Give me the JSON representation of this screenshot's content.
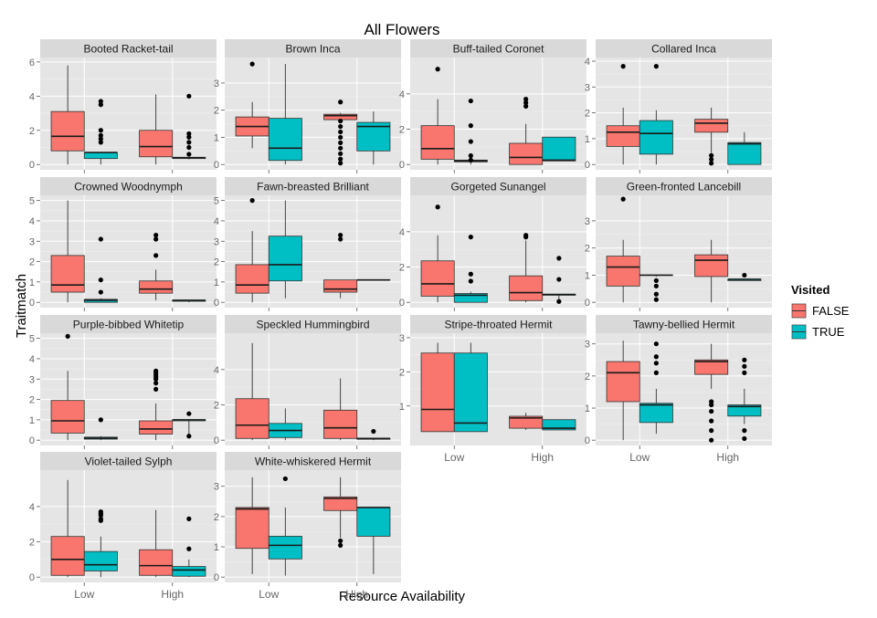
{
  "chart_data": {
    "type": "boxplot",
    "title": "All Flowers",
    "xlabel": "Resource Availability",
    "ylabel": "Traitmatch",
    "grid": true,
    "legend": {
      "title": "Visited",
      "position": "right",
      "entries": [
        {
          "label": "FALSE",
          "color": "#F8766D"
        },
        {
          "label": "TRUE",
          "color": "#00BFC4"
        }
      ]
    },
    "categories": [
      "Low",
      "High"
    ],
    "panels": [
      {
        "title": "Booted Racket-tail",
        "ylim": [
          0,
          6.2
        ],
        "yticks": [
          0,
          2,
          4,
          6
        ],
        "groups": [
          {
            "category": "Low",
            "visited": "FALSE",
            "min": 0,
            "q1": 0.8,
            "median": 1.65,
            "q3": 3.1,
            "max": 5.8,
            "outliers": []
          },
          {
            "category": "Low",
            "visited": "TRUE",
            "min": 0,
            "q1": 0.35,
            "median": 0.7,
            "q3": 0.7,
            "max": 0.7,
            "outliers": [
              3.7,
              3.5,
              2.0,
              1.7,
              1.5,
              1.3
            ]
          },
          {
            "category": "High",
            "visited": "FALSE",
            "min": 0,
            "q1": 0.45,
            "median": 1.05,
            "q3": 2.0,
            "max": 4.1,
            "outliers": []
          },
          {
            "category": "High",
            "visited": "TRUE",
            "min": 0.3,
            "q1": 0.35,
            "median": 0.4,
            "q3": 0.4,
            "max": 0.4,
            "outliers": [
              4.0,
              1.8,
              1.6,
              1.3,
              1.0,
              0.6
            ]
          }
        ]
      },
      {
        "title": "Brown Inca",
        "ylim": [
          0,
          3.9
        ],
        "yticks": [
          0,
          1,
          2,
          3
        ],
        "groups": [
          {
            "category": "Low",
            "visited": "FALSE",
            "min": 0.6,
            "q1": 1.05,
            "median": 1.4,
            "q3": 1.75,
            "max": 2.3,
            "outliers": [
              3.7
            ]
          },
          {
            "category": "Low",
            "visited": "TRUE",
            "min": 0,
            "q1": 0.15,
            "median": 0.6,
            "q3": 1.7,
            "max": 3.7,
            "outliers": []
          },
          {
            "category": "High",
            "visited": "FALSE",
            "min": 1.6,
            "q1": 1.65,
            "median": 1.8,
            "q3": 1.85,
            "max": 1.9,
            "outliers": [
              2.3,
              1.6,
              1.4,
              1.2,
              1.0,
              0.8,
              0.6,
              0.4,
              0.2,
              0.05
            ]
          },
          {
            "category": "High",
            "visited": "TRUE",
            "min": 0,
            "q1": 0.5,
            "median": 1.4,
            "q3": 1.55,
            "max": 1.95,
            "outliers": []
          }
        ]
      },
      {
        "title": "Buff-tailed Coronet",
        "ylim": [
          0,
          6.0
        ],
        "yticks": [
          0,
          2,
          4
        ],
        "groups": [
          {
            "category": "Low",
            "visited": "FALSE",
            "min": 0,
            "q1": 0.3,
            "median": 0.9,
            "q3": 2.2,
            "max": 3.7,
            "outliers": [
              5.4
            ]
          },
          {
            "category": "Low",
            "visited": "TRUE",
            "min": 0,
            "q1": 0.15,
            "median": 0.2,
            "q3": 0.25,
            "max": 0.35,
            "outliers": [
              3.6,
              2.2,
              1.3,
              0.5,
              0.25
            ]
          },
          {
            "category": "High",
            "visited": "FALSE",
            "min": 0,
            "q1": 0,
            "median": 0.4,
            "q3": 1.2,
            "max": 2.3,
            "outliers": [
              3.7,
              3.5,
              3.3
            ]
          },
          {
            "category": "High",
            "visited": "TRUE",
            "min": 0.2,
            "q1": 0.2,
            "median": 0.25,
            "q3": 1.55,
            "max": 1.55,
            "outliers": []
          }
        ]
      },
      {
        "title": "Collared Inca",
        "ylim": [
          0,
          4.1
        ],
        "yticks": [
          0,
          1,
          2,
          3,
          4
        ],
        "groups": [
          {
            "category": "Low",
            "visited": "FALSE",
            "min": 0,
            "q1": 0.7,
            "median": 1.25,
            "q3": 1.5,
            "max": 2.2,
            "outliers": [
              3.8
            ]
          },
          {
            "category": "Low",
            "visited": "TRUE",
            "min": 0,
            "q1": 0.4,
            "median": 1.2,
            "q3": 1.7,
            "max": 2.1,
            "outliers": [
              3.8
            ]
          },
          {
            "category": "High",
            "visited": "FALSE",
            "min": 0.45,
            "q1": 1.25,
            "median": 1.6,
            "q3": 1.75,
            "max": 2.2,
            "outliers": [
              0.35,
              0.2,
              0.05
            ]
          },
          {
            "category": "High",
            "visited": "TRUE",
            "min": 0,
            "q1": 0,
            "median": 0.8,
            "q3": 0.85,
            "max": 1.25,
            "outliers": []
          }
        ]
      },
      {
        "title": "Crowned Woodnymph",
        "ylim": [
          0,
          5.2
        ],
        "yticks": [
          0,
          1,
          2,
          3,
          4,
          5
        ],
        "groups": [
          {
            "category": "Low",
            "visited": "FALSE",
            "min": 0,
            "q1": 0.5,
            "median": 0.85,
            "q3": 2.3,
            "max": 5.0,
            "outliers": []
          },
          {
            "category": "Low",
            "visited": "TRUE",
            "min": 0,
            "q1": 0,
            "median": 0.1,
            "q3": 0.15,
            "max": 0.2,
            "outliers": [
              3.1,
              1.1,
              0.5
            ]
          },
          {
            "category": "High",
            "visited": "FALSE",
            "min": 0.1,
            "q1": 0.45,
            "median": 0.65,
            "q3": 1.05,
            "max": 1.6,
            "outliers": [
              3.3,
              3.1,
              2.3
            ]
          },
          {
            "category": "High",
            "visited": "TRUE",
            "min": 0,
            "q1": 0.05,
            "median": 0.1,
            "q3": 0.1,
            "max": 0.1,
            "outliers": []
          }
        ]
      },
      {
        "title": "Fawn-breasted Brilliant",
        "ylim": [
          0,
          5.2
        ],
        "yticks": [
          0,
          1,
          2,
          3,
          4,
          5
        ],
        "groups": [
          {
            "category": "Low",
            "visited": "FALSE",
            "min": 0,
            "q1": 0.45,
            "median": 0.85,
            "q3": 1.85,
            "max": 3.5,
            "outliers": [
              5.0
            ]
          },
          {
            "category": "Low",
            "visited": "TRUE",
            "min": 0.2,
            "q1": 1.05,
            "median": 1.85,
            "q3": 3.25,
            "max": 5.0,
            "outliers": []
          },
          {
            "category": "High",
            "visited": "FALSE",
            "min": 0.2,
            "q1": 0.5,
            "median": 0.65,
            "q3": 1.1,
            "max": 1.1,
            "outliers": [
              3.3,
              3.1
            ]
          },
          {
            "category": "High",
            "visited": "TRUE",
            "min": 1.1,
            "q1": 1.1,
            "median": 1.1,
            "q3": 1.1,
            "max": 1.1,
            "outliers": []
          }
        ]
      },
      {
        "title": "Gorgeted Sunangel",
        "ylim": [
          0,
          6.0
        ],
        "yticks": [
          0,
          2,
          4
        ],
        "groups": [
          {
            "category": "Low",
            "visited": "FALSE",
            "min": 0,
            "q1": 0.35,
            "median": 1.05,
            "q3": 2.35,
            "max": 3.8,
            "outliers": [
              5.4
            ]
          },
          {
            "category": "Low",
            "visited": "TRUE",
            "min": 0,
            "q1": 0,
            "median": 0.4,
            "q3": 0.5,
            "max": 0.6,
            "outliers": [
              3.7,
              1.6,
              1.2
            ]
          },
          {
            "category": "High",
            "visited": "FALSE",
            "min": 0,
            "q1": 0.1,
            "median": 0.55,
            "q3": 1.5,
            "max": 3.5,
            "outliers": [
              3.8,
              3.7
            ]
          },
          {
            "category": "High",
            "visited": "TRUE",
            "min": 0,
            "q1": 0.4,
            "median": 0.45,
            "q3": 0.45,
            "max": 0.45,
            "outliers": [
              2.5,
              1.3,
              0.05
            ]
          }
        ]
      },
      {
        "title": "Green-fronted Lancebill",
        "ylim": [
          0,
          3.9
        ],
        "yticks": [
          0,
          1,
          2,
          3
        ],
        "groups": [
          {
            "category": "Low",
            "visited": "FALSE",
            "min": 0,
            "q1": 0.6,
            "median": 1.3,
            "q3": 1.7,
            "max": 2.3,
            "outliers": [
              3.8
            ]
          },
          {
            "category": "Low",
            "visited": "TRUE",
            "min": 0.95,
            "q1": 1.0,
            "median": 1.0,
            "q3": 1.0,
            "max": 1.0,
            "outliers": [
              0.8,
              0.6,
              0.3,
              0.1
            ]
          },
          {
            "category": "High",
            "visited": "FALSE",
            "min": 0,
            "q1": 0.95,
            "median": 1.55,
            "q3": 1.75,
            "max": 2.3,
            "outliers": []
          },
          {
            "category": "High",
            "visited": "TRUE",
            "min": 0.8,
            "q1": 0.8,
            "median": 0.85,
            "q3": 0.85,
            "max": 0.85,
            "outliers": [
              1.0
            ]
          }
        ]
      },
      {
        "title": "Purple-bibbed Whitetip",
        "ylim": [
          0,
          5.2
        ],
        "yticks": [
          0,
          1,
          2,
          3,
          4,
          5
        ],
        "groups": [
          {
            "category": "Low",
            "visited": "FALSE",
            "min": 0,
            "q1": 0.35,
            "median": 0.95,
            "q3": 1.95,
            "max": 3.4,
            "outliers": [
              5.1
            ]
          },
          {
            "category": "Low",
            "visited": "TRUE",
            "min": 0,
            "q1": 0.05,
            "median": 0.1,
            "q3": 0.15,
            "max": 0.2,
            "outliers": [
              1.0
            ]
          },
          {
            "category": "High",
            "visited": "FALSE",
            "min": 0,
            "q1": 0.3,
            "median": 0.55,
            "q3": 0.95,
            "max": 1.8,
            "outliers": [
              3.4,
              3.3,
              3.2,
              3.1,
              3.0,
              2.8,
              2.5
            ]
          },
          {
            "category": "High",
            "visited": "TRUE",
            "min": 0.2,
            "q1": 0.95,
            "median": 1.0,
            "q3": 1.0,
            "max": 1.0,
            "outliers": [
              1.3,
              0.2
            ]
          }
        ]
      },
      {
        "title": "Speckled Hummingbird",
        "ylim": [
          0,
          6.0
        ],
        "yticks": [
          0,
          2,
          4
        ],
        "groups": [
          {
            "category": "Low",
            "visited": "FALSE",
            "min": 0,
            "q1": 0.1,
            "median": 0.85,
            "q3": 2.35,
            "max": 5.5,
            "outliers": []
          },
          {
            "category": "Low",
            "visited": "TRUE",
            "min": 0,
            "q1": 0.15,
            "median": 0.55,
            "q3": 0.95,
            "max": 1.8,
            "outliers": []
          },
          {
            "category": "High",
            "visited": "FALSE",
            "min": 0,
            "q1": 0.1,
            "median": 0.7,
            "q3": 1.7,
            "max": 3.5,
            "outliers": []
          },
          {
            "category": "High",
            "visited": "TRUE",
            "min": 0,
            "q1": 0.05,
            "median": 0.1,
            "q3": 0.1,
            "max": 0.1,
            "outliers": [
              0.5
            ]
          }
        ]
      },
      {
        "title": "Stripe-throated Hermit",
        "ylim": [
          0,
          3.1
        ],
        "yticks": [
          1,
          2,
          3
        ],
        "groups": [
          {
            "category": "Low",
            "visited": "FALSE",
            "min": 0.25,
            "q1": 0.25,
            "median": 0.9,
            "q3": 2.55,
            "max": 2.85,
            "outliers": []
          },
          {
            "category": "Low",
            "visited": "TRUE",
            "min": 0.25,
            "q1": 0.25,
            "median": 0.5,
            "q3": 2.55,
            "max": 2.85,
            "outliers": []
          },
          {
            "category": "High",
            "visited": "FALSE",
            "min": 0.3,
            "q1": 0.35,
            "median": 0.65,
            "q3": 0.7,
            "max": 0.8,
            "outliers": []
          },
          {
            "category": "High",
            "visited": "TRUE",
            "min": 0.3,
            "q1": 0.3,
            "median": 0.35,
            "q3": 0.6,
            "max": 0.6,
            "outliers": []
          }
        ]
      },
      {
        "title": "Tawny-bellied Hermit",
        "ylim": [
          0,
          3.3
        ],
        "yticks": [
          0,
          1,
          2,
          3
        ],
        "groups": [
          {
            "category": "Low",
            "visited": "FALSE",
            "min": 0,
            "q1": 1.2,
            "median": 2.1,
            "q3": 2.45,
            "max": 3.1,
            "outliers": []
          },
          {
            "category": "Low",
            "visited": "TRUE",
            "min": 0.2,
            "q1": 0.55,
            "median": 1.1,
            "q3": 1.15,
            "max": 1.6,
            "outliers": [
              3.0,
              2.6,
              2.4,
              2.1
            ]
          },
          {
            "category": "High",
            "visited": "FALSE",
            "min": 1.6,
            "q1": 2.05,
            "median": 2.45,
            "q3": 2.5,
            "max": 3.0,
            "outliers": [
              1.2,
              1.1,
              0.9,
              0.6,
              0.3,
              0.0
            ]
          },
          {
            "category": "High",
            "visited": "TRUE",
            "min": 0.5,
            "q1": 0.75,
            "median": 1.05,
            "q3": 1.1,
            "max": 1.6,
            "outliers": [
              2.5,
              2.3,
              2.1,
              0.3,
              0.05
            ]
          }
        ]
      },
      {
        "title": "Violet-tailed Sylph",
        "ylim": [
          0,
          6.0
        ],
        "yticks": [
          0,
          2,
          4
        ],
        "groups": [
          {
            "category": "Low",
            "visited": "FALSE",
            "min": 0,
            "q1": 0.1,
            "median": 1.0,
            "q3": 2.3,
            "max": 5.5,
            "outliers": []
          },
          {
            "category": "Low",
            "visited": "TRUE",
            "min": 0,
            "q1": 0.35,
            "median": 0.7,
            "q3": 1.45,
            "max": 2.3,
            "outliers": [
              3.7,
              3.6,
              3.5,
              3.3,
              3.2
            ]
          },
          {
            "category": "High",
            "visited": "FALSE",
            "min": 0,
            "q1": 0.1,
            "median": 0.65,
            "q3": 1.55,
            "max": 3.8,
            "outliers": []
          },
          {
            "category": "High",
            "visited": "TRUE",
            "min": 0,
            "q1": 0.05,
            "median": 0.4,
            "q3": 0.6,
            "max": 1.0,
            "outliers": [
              3.3,
              1.6
            ]
          }
        ]
      },
      {
        "title": "White-whiskered Hermit",
        "ylim": [
          0,
          3.5
        ],
        "yticks": [
          0,
          1,
          2,
          3
        ],
        "groups": [
          {
            "category": "Low",
            "visited": "FALSE",
            "min": 0.1,
            "q1": 0.95,
            "median": 2.25,
            "q3": 2.3,
            "max": 3.3,
            "outliers": []
          },
          {
            "category": "Low",
            "visited": "TRUE",
            "min": 0.05,
            "q1": 0.6,
            "median": 1.05,
            "q3": 1.35,
            "max": 2.3,
            "outliers": [
              3.25
            ]
          },
          {
            "category": "High",
            "visited": "FALSE",
            "min": 1.3,
            "q1": 2.2,
            "median": 2.6,
            "q3": 2.65,
            "max": 3.3,
            "outliers": [
              1.2,
              1.05
            ]
          },
          {
            "category": "High",
            "visited": "TRUE",
            "min": 0.1,
            "q1": 1.35,
            "median": 2.3,
            "q3": 2.3,
            "max": 2.3,
            "outliers": []
          }
        ]
      }
    ]
  }
}
